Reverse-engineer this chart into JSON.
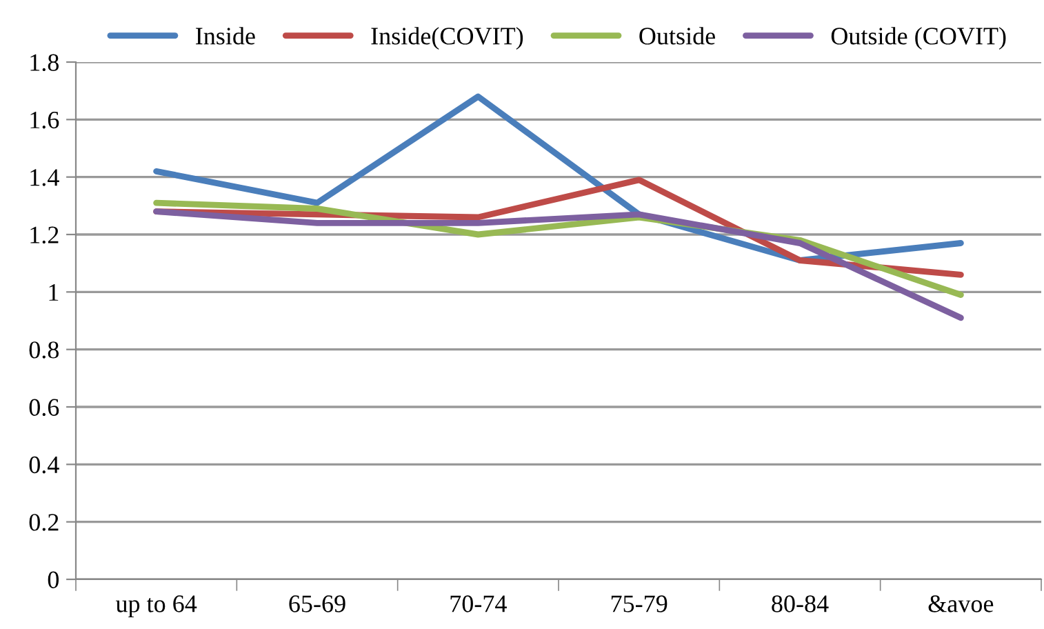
{
  "chart_data": {
    "type": "line",
    "categories": [
      "up to 64",
      "65-69",
      "70-74",
      "75-79",
      "80-84",
      "&avoe"
    ],
    "series": [
      {
        "name": "Inside",
        "color": "#4a7ebb",
        "values": [
          1.42,
          1.31,
          1.68,
          1.27,
          1.11,
          1.17
        ]
      },
      {
        "name": "Inside(COVIT)",
        "color": "#be4b48",
        "values": [
          1.28,
          1.27,
          1.26,
          1.39,
          1.11,
          1.06
        ]
      },
      {
        "name": "Outside",
        "color": "#98b954",
        "values": [
          1.31,
          1.29,
          1.2,
          1.26,
          1.18,
          0.99
        ]
      },
      {
        "name": "Outside (COVIT)",
        "color": "#7d60a0",
        "values": [
          1.28,
          1.24,
          1.24,
          1.27,
          1.17,
          0.91
        ]
      }
    ],
    "ylim": [
      0,
      1.8
    ],
    "yticks": [
      0,
      {
        "value": 0.2,
        "label": "0.2"
      },
      {
        "value": 0.4,
        "label": "0.4"
      },
      {
        "value": 0.6,
        "label": "0.6"
      },
      {
        "value": 0.8,
        "label": "0.8"
      },
      1,
      {
        "value": 1.2,
        "label": "1.2"
      },
      {
        "value": 1.4,
        "label": "1.4"
      },
      {
        "value": 1.6,
        "label": "1.6"
      },
      {
        "value": 1.8,
        "label": "1.8"
      }
    ],
    "grid": "y",
    "legend": "top",
    "marker": "none",
    "line_style": "solid"
  }
}
